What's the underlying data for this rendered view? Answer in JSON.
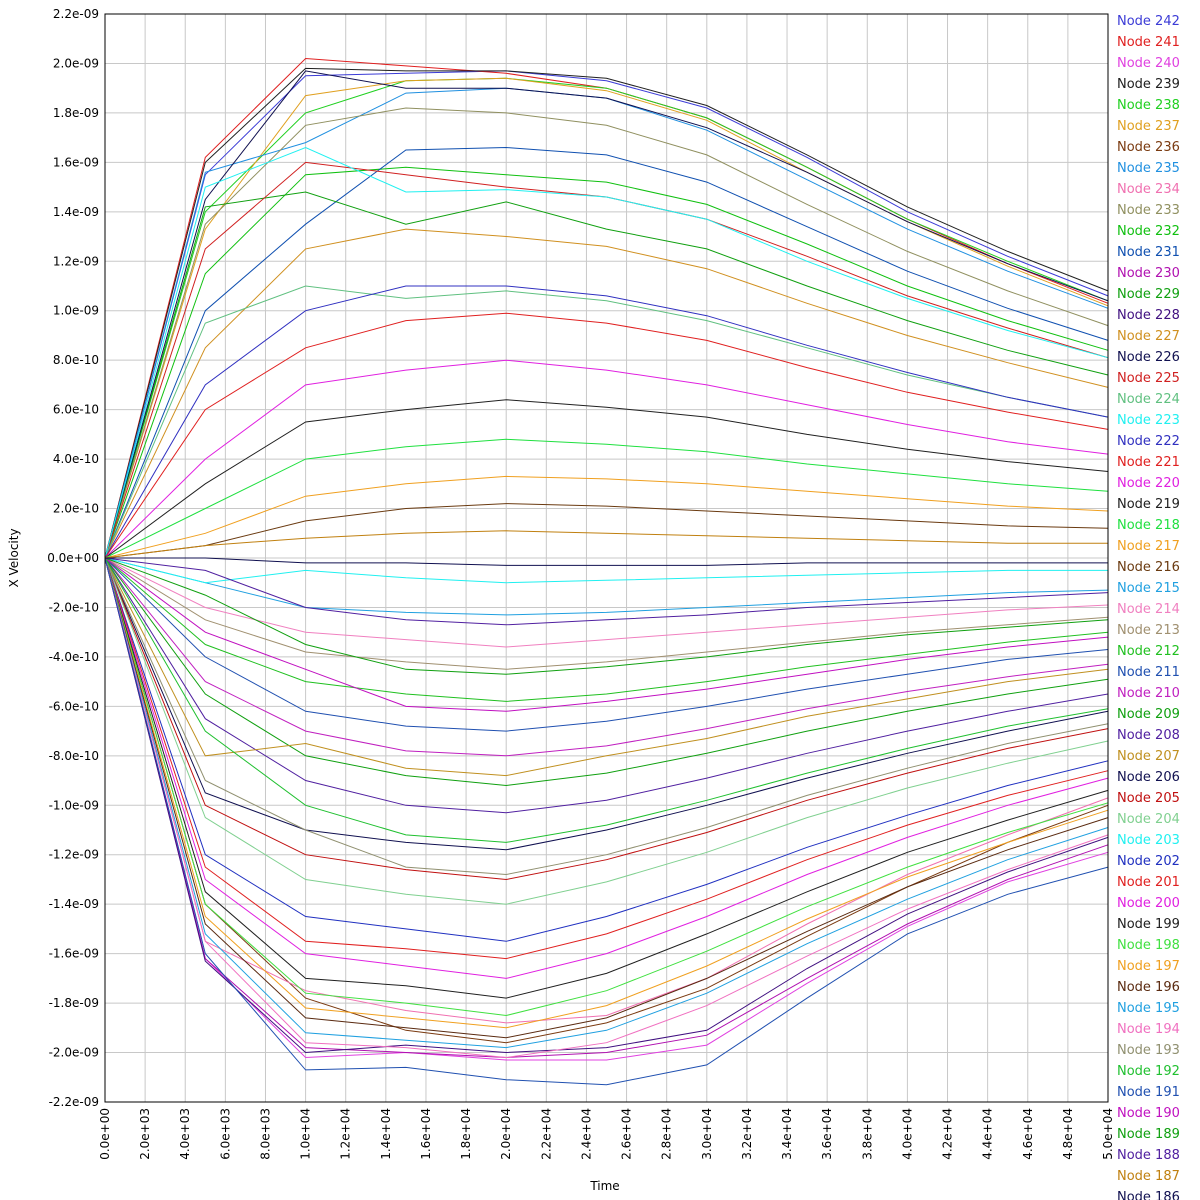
{
  "chart_data": {
    "type": "line",
    "xlabel": "Time",
    "ylabel": "X Velocity",
    "xlim": [
      0,
      50000
    ],
    "ylim": [
      -2.2e-09,
      2.2e-09
    ],
    "grid": true,
    "legend_placement": "right",
    "x_ticks": [
      "0.0e+00",
      "2.0e+03",
      "4.0e+03",
      "6.0e+03",
      "8.0e+03",
      "1.0e+04",
      "1.2e+04",
      "1.4e+04",
      "1.6e+04",
      "1.8e+04",
      "2.0e+04",
      "2.2e+04",
      "2.4e+04",
      "2.6e+04",
      "2.8e+04",
      "3.0e+04",
      "3.2e+04",
      "3.4e+04",
      "3.6e+04",
      "3.8e+04",
      "4.0e+04",
      "4.2e+04",
      "4.4e+04",
      "4.6e+04",
      "4.8e+04",
      "5.0e+04"
    ],
    "y_ticks": [
      "2.2e-09",
      "2.0e-09",
      "1.8e-09",
      "1.6e-09",
      "1.4e-09",
      "1.2e-09",
      "1.0e-09",
      "8.0e-10",
      "6.0e-10",
      "4.0e-10",
      "2.0e-10",
      "0.0e+00",
      "-2.0e-10",
      "-4.0e-10",
      "-6.0e-10",
      "-8.0e-10",
      "-1.0e-09",
      "-1.2e-09",
      "-1.4e-09",
      "-1.6e-09",
      "-1.8e-09",
      "-2.0e-09",
      "-2.2e-09"
    ],
    "x": [
      0,
      5000,
      10000,
      15000,
      20000,
      25000,
      30000,
      35000,
      40000,
      45000,
      50000
    ],
    "series": [
      {
        "name": "Node 242",
        "color": "#3b3bd6",
        "values": [
          0,
          1.55e-09,
          1.95e-09,
          1.96e-09,
          1.97e-09,
          1.93e-09,
          1.82e-09,
          1.62e-09,
          1.4e-09,
          1.22e-09,
          1.06e-09
        ]
      },
      {
        "name": "Node 241",
        "color": "#e02020",
        "values": [
          0,
          1.62e-09,
          2.02e-09,
          1.99e-09,
          1.96e-09,
          1.9e-09,
          1.78e-09,
          1.58e-09,
          1.37e-09,
          1.19e-09,
          1.03e-09
        ]
      },
      {
        "name": "Node 240",
        "color": "#e040e0",
        "values": [
          0,
          -1.62e-09,
          -2.02e-09,
          -2e-09,
          -2.03e-09,
          -2.03e-09,
          -1.97e-09,
          -1.72e-09,
          -1.49e-09,
          -1.31e-09,
          -1.19e-09
        ]
      },
      {
        "name": "Node 239",
        "color": "#202020",
        "values": [
          0,
          1.6e-09,
          1.98e-09,
          1.97e-09,
          1.97e-09,
          1.94e-09,
          1.83e-09,
          1.63e-09,
          1.42e-09,
          1.24e-09,
          1.08e-09
        ]
      },
      {
        "name": "Node 238",
        "color": "#20d020",
        "values": [
          0,
          1.4e-09,
          1.8e-09,
          1.93e-09,
          1.94e-09,
          1.9e-09,
          1.78e-09,
          1.58e-09,
          1.37e-09,
          1.2e-09,
          1.04e-09
        ]
      },
      {
        "name": "Node 237",
        "color": "#e0a020",
        "values": [
          0,
          1.33e-09,
          1.87e-09,
          1.93e-09,
          1.94e-09,
          1.89e-09,
          1.77e-09,
          1.56e-09,
          1.36e-09,
          1.18e-09,
          1.02e-09
        ]
      },
      {
        "name": "Node 236",
        "color": "#7a3a10",
        "values": [
          0,
          -1.4e-09,
          -1.78e-09,
          -1.91e-09,
          -1.96e-09,
          -1.88e-09,
          -1.74e-09,
          -1.53e-09,
          -1.33e-09,
          -1.15e-09,
          -1e-09
        ]
      },
      {
        "name": "Node 235",
        "color": "#2090e0",
        "values": [
          0,
          1.56e-09,
          1.68e-09,
          1.88e-09,
          1.9e-09,
          1.86e-09,
          1.73e-09,
          1.53e-09,
          1.33e-09,
          1.16e-09,
          1.01e-09
        ]
      },
      {
        "name": "Node 234",
        "color": "#f070b0",
        "values": [
          0,
          -1.55e-09,
          -1.75e-09,
          -1.83e-09,
          -1.88e-09,
          -1.85e-09,
          -1.7e-09,
          -1.48e-09,
          -1.28e-09,
          -1.12e-09,
          -9.7e-10
        ]
      },
      {
        "name": "Node 233",
        "color": "#909060",
        "values": [
          0,
          1.35e-09,
          1.75e-09,
          1.82e-09,
          1.8e-09,
          1.75e-09,
          1.63e-09,
          1.43e-09,
          1.24e-09,
          1.08e-09,
          9.4e-10
        ]
      },
      {
        "name": "Node 232",
        "color": "#10c010",
        "values": [
          0,
          1.15e-09,
          1.55e-09,
          1.58e-09,
          1.55e-09,
          1.52e-09,
          1.43e-09,
          1.27e-09,
          1.1e-09,
          9.6e-10,
          8.4e-10
        ]
      },
      {
        "name": "Node 231",
        "color": "#1050b0",
        "values": [
          0,
          1e-09,
          1.35e-09,
          1.65e-09,
          1.66e-09,
          1.63e-09,
          1.52e-09,
          1.34e-09,
          1.16e-09,
          1.01e-09,
          8.8e-10
        ]
      },
      {
        "name": "Node 230",
        "color": "#b010b0",
        "values": [
          0,
          -1.62e-09,
          -1.98e-09,
          -2e-09,
          -2.02e-09,
          -2e-09,
          -1.93e-09,
          -1.7e-09,
          -1.48e-09,
          -1.3e-09,
          -1.16e-09
        ]
      },
      {
        "name": "Node 229",
        "color": "#10a010",
        "values": [
          0,
          1.42e-09,
          1.48e-09,
          1.35e-09,
          1.44e-09,
          1.33e-09,
          1.25e-09,
          1.1e-09,
          9.6e-10,
          8.4e-10,
          7.4e-10
        ]
      },
      {
        "name": "Node 228",
        "color": "#401080",
        "values": [
          0,
          -1.63e-09,
          -2e-09,
          -1.97e-09,
          -2e-09,
          -1.98e-09,
          -1.91e-09,
          -1.66e-09,
          -1.44e-09,
          -1.27e-09,
          -1.13e-09
        ]
      },
      {
        "name": "Node 227",
        "color": "#d09020",
        "values": [
          0,
          8.5e-10,
          1.25e-09,
          1.33e-09,
          1.3e-09,
          1.26e-09,
          1.17e-09,
          1.03e-09,
          9e-10,
          7.9e-10,
          6.9e-10
        ]
      },
      {
        "name": "Node 226",
        "color": "#101050",
        "values": [
          0,
          1.45e-09,
          1.97e-09,
          1.9e-09,
          1.9e-09,
          1.86e-09,
          1.74e-09,
          1.56e-09,
          1.36e-09,
          1.19e-09,
          1.04e-09
        ]
      },
      {
        "name": "Node 225",
        "color": "#d02020",
        "values": [
          0,
          1.25e-09,
          1.6e-09,
          1.55e-09,
          1.5e-09,
          1.46e-09,
          1.37e-09,
          1.22e-09,
          1.06e-09,
          9.3e-10,
          8.1e-10
        ]
      },
      {
        "name": "Node 224",
        "color": "#60c080",
        "values": [
          0,
          9.5e-10,
          1.1e-09,
          1.05e-09,
          1.08e-09,
          1.04e-09,
          9.6e-10,
          8.5e-10,
          7.4e-10,
          6.5e-10,
          5.7e-10
        ]
      },
      {
        "name": "Node 223",
        "color": "#20f0f0",
        "values": [
          0,
          1.5e-09,
          1.66e-09,
          1.48e-09,
          1.49e-09,
          1.46e-09,
          1.37e-09,
          1.2e-09,
          1.05e-09,
          9.2e-10,
          8.1e-10
        ]
      },
      {
        "name": "Node 222",
        "color": "#3030c0",
        "values": [
          0,
          7e-10,
          1e-09,
          1.1e-09,
          1.1e-09,
          1.06e-09,
          9.8e-10,
          8.6e-10,
          7.5e-10,
          6.5e-10,
          5.7e-10
        ]
      },
      {
        "name": "Node 221",
        "color": "#e02020",
        "values": [
          0,
          6e-10,
          8.5e-10,
          9.6e-10,
          9.9e-10,
          9.5e-10,
          8.8e-10,
          7.7e-10,
          6.7e-10,
          5.9e-10,
          5.2e-10
        ]
      },
      {
        "name": "Node 220",
        "color": "#e020e0",
        "values": [
          0,
          4e-10,
          7e-10,
          7.6e-10,
          8e-10,
          7.6e-10,
          7e-10,
          6.2e-10,
          5.4e-10,
          4.7e-10,
          4.2e-10
        ]
      },
      {
        "name": "Node 219",
        "color": "#202020",
        "values": [
          0,
          3e-10,
          5.5e-10,
          6e-10,
          6.4e-10,
          6.1e-10,
          5.7e-10,
          5e-10,
          4.4e-10,
          3.9e-10,
          3.5e-10
        ]
      },
      {
        "name": "Node 218",
        "color": "#20e040",
        "values": [
          0,
          2e-10,
          4e-10,
          4.5e-10,
          4.8e-10,
          4.6e-10,
          4.3e-10,
          3.8e-10,
          3.4e-10,
          3e-10,
          2.7e-10
        ]
      },
      {
        "name": "Node 217",
        "color": "#f0a020",
        "values": [
          0,
          1e-10,
          2.5e-10,
          3e-10,
          3.3e-10,
          3.2e-10,
          3e-10,
          2.7e-10,
          2.4e-10,
          2.1e-10,
          1.9e-10
        ]
      },
      {
        "name": "Node 216",
        "color": "#6a3a10",
        "values": [
          0,
          5e-11,
          1.5e-10,
          2e-10,
          2.2e-10,
          2.1e-10,
          1.9e-10,
          1.7e-10,
          1.5e-10,
          1.3e-10,
          1.2e-10
        ]
      },
      {
        "name": "Node 215",
        "color": "#20a0e0",
        "values": [
          0,
          -1e-10,
          -2e-10,
          -2.2e-10,
          -2.3e-10,
          -2.2e-10,
          -2e-10,
          -1.8e-10,
          -1.6e-10,
          -1.4e-10,
          -1.3e-10
        ]
      },
      {
        "name": "Node 214",
        "color": "#f080c0",
        "values": [
          0,
          -2e-10,
          -3e-10,
          -3.3e-10,
          -3.6e-10,
          -3.3e-10,
          -3e-10,
          -2.7e-10,
          -2.4e-10,
          -2.1e-10,
          -1.9e-10
        ]
      },
      {
        "name": "Node 213",
        "color": "#a09070",
        "values": [
          0,
          -2.5e-10,
          -3.8e-10,
          -4.2e-10,
          -4.5e-10,
          -4.2e-10,
          -3.8e-10,
          -3.4e-10,
          -3e-10,
          -2.7e-10,
          -2.4e-10
        ]
      },
      {
        "name": "Node 212",
        "color": "#20c020",
        "values": [
          0,
          -3.5e-10,
          -5e-10,
          -5.5e-10,
          -5.8e-10,
          -5.5e-10,
          -5e-10,
          -4.4e-10,
          -3.9e-10,
          -3.4e-10,
          -3e-10
        ]
      },
      {
        "name": "Node 211",
        "color": "#2050b0",
        "values": [
          0,
          -4e-10,
          -6.2e-10,
          -6.8e-10,
          -7e-10,
          -6.6e-10,
          -6e-10,
          -5.3e-10,
          -4.7e-10,
          -4.1e-10,
          -3.7e-10
        ]
      },
      {
        "name": "Node 210",
        "color": "#c020c0",
        "values": [
          0,
          -5e-10,
          -7e-10,
          -7.8e-10,
          -8e-10,
          -7.6e-10,
          -6.9e-10,
          -6.1e-10,
          -5.4e-10,
          -4.8e-10,
          -4.3e-10
        ]
      },
      {
        "name": "Node 209",
        "color": "#10a010",
        "values": [
          0,
          -5.5e-10,
          -8e-10,
          -8.8e-10,
          -9.2e-10,
          -8.7e-10,
          -7.9e-10,
          -7e-10,
          -6.2e-10,
          -5.5e-10,
          -4.9e-10
        ]
      },
      {
        "name": "Node 208",
        "color": "#5020a0",
        "values": [
          0,
          -6.5e-10,
          -9e-10,
          -1e-09,
          -1.03e-09,
          -9.8e-10,
          -8.9e-10,
          -7.9e-10,
          -7e-10,
          -6.2e-10,
          -5.5e-10
        ]
      },
      {
        "name": "Node 207",
        "color": "#c09020",
        "values": [
          0,
          -8e-10,
          -7.5e-10,
          -8.5e-10,
          -8.8e-10,
          -8e-10,
          -7.3e-10,
          -6.4e-10,
          -5.7e-10,
          -5e-10,
          -4.5e-10
        ]
      },
      {
        "name": "Node 206",
        "color": "#101050",
        "values": [
          0,
          -9.5e-10,
          -1.1e-09,
          -1.15e-09,
          -1.18e-09,
          -1.1e-09,
          -1e-09,
          -8.9e-10,
          -7.9e-10,
          -7e-10,
          -6.2e-10
        ]
      },
      {
        "name": "Node 205",
        "color": "#c01010",
        "values": [
          0,
          -1e-09,
          -1.2e-09,
          -1.26e-09,
          -1.3e-09,
          -1.22e-09,
          -1.11e-09,
          -9.8e-10,
          -8.7e-10,
          -7.7e-10,
          -6.9e-10
        ]
      },
      {
        "name": "Node 204",
        "color": "#80d090",
        "values": [
          0,
          -1.05e-09,
          -1.3e-09,
          -1.36e-09,
          -1.4e-09,
          -1.31e-09,
          -1.19e-09,
          -1.05e-09,
          -9.3e-10,
          -8.3e-10,
          -7.4e-10
        ]
      },
      {
        "name": "Node 203",
        "color": "#20f0f0",
        "values": [
          0,
          -1e-10,
          -5e-11,
          -8e-11,
          -1e-10,
          -9e-11,
          -8e-11,
          -7e-11,
          -6e-11,
          -5e-11,
          -5e-11
        ]
      },
      {
        "name": "Node 202",
        "color": "#2030c0",
        "values": [
          0,
          -1.2e-09,
          -1.45e-09,
          -1.5e-09,
          -1.55e-09,
          -1.45e-09,
          -1.32e-09,
          -1.17e-09,
          -1.04e-09,
          -9.2e-10,
          -8.2e-10
        ]
      },
      {
        "name": "Node 201",
        "color": "#e02020",
        "values": [
          0,
          -1.25e-09,
          -1.55e-09,
          -1.58e-09,
          -1.62e-09,
          -1.52e-09,
          -1.38e-09,
          -1.22e-09,
          -1.08e-09,
          -9.6e-10,
          -8.6e-10
        ]
      },
      {
        "name": "Node 200",
        "color": "#e020e0",
        "values": [
          0,
          -1.3e-09,
          -1.6e-09,
          -1.65e-09,
          -1.7e-09,
          -1.6e-09,
          -1.45e-09,
          -1.28e-09,
          -1.13e-09,
          -1e-09,
          -8.9e-10
        ]
      },
      {
        "name": "Node 199",
        "color": "#202020",
        "values": [
          0,
          -1.35e-09,
          -1.7e-09,
          -1.73e-09,
          -1.78e-09,
          -1.68e-09,
          -1.52e-09,
          -1.35e-09,
          -1.19e-09,
          -1.06e-09,
          -9.4e-10
        ]
      },
      {
        "name": "Node 198",
        "color": "#40e040",
        "values": [
          0,
          -1.4e-09,
          -1.76e-09,
          -1.8e-09,
          -1.85e-09,
          -1.75e-09,
          -1.59e-09,
          -1.41e-09,
          -1.25e-09,
          -1.11e-09,
          -9.9e-10
        ]
      },
      {
        "name": "Node 197",
        "color": "#f0a020",
        "values": [
          0,
          -1.45e-09,
          -1.82e-09,
          -1.86e-09,
          -1.9e-09,
          -1.81e-09,
          -1.65e-09,
          -1.46e-09,
          -1.29e-09,
          -1.15e-09,
          -1.02e-09
        ]
      },
      {
        "name": "Node 196",
        "color": "#5a2a10",
        "values": [
          0,
          -1.48e-09,
          -1.86e-09,
          -1.9e-09,
          -1.94e-09,
          -1.86e-09,
          -1.7e-09,
          -1.51e-09,
          -1.33e-09,
          -1.18e-09,
          -1.05e-09
        ]
      },
      {
        "name": "Node 195",
        "color": "#20a0e0",
        "values": [
          0,
          -1.52e-09,
          -1.92e-09,
          -1.95e-09,
          -1.98e-09,
          -1.91e-09,
          -1.76e-09,
          -1.56e-09,
          -1.38e-09,
          -1.22e-09,
          -1.09e-09
        ]
      },
      {
        "name": "Node 194",
        "color": "#f070c0",
        "values": [
          0,
          -1.55e-09,
          -1.96e-09,
          -1.98e-09,
          -2.02e-09,
          -1.96e-09,
          -1.81e-09,
          -1.61e-09,
          -1.42e-09,
          -1.26e-09,
          -1.12e-09
        ]
      },
      {
        "name": "Node 193",
        "color": "#909070",
        "values": [
          0,
          -9e-10,
          -1.1e-09,
          -1.25e-09,
          -1.28e-09,
          -1.2e-09,
          -1.09e-09,
          -9.6e-10,
          -8.5e-10,
          -7.5e-10,
          -6.7e-10
        ]
      },
      {
        "name": "Node 192",
        "color": "#20c030",
        "values": [
          0,
          -7e-10,
          -1e-09,
          -1.12e-09,
          -1.15e-09,
          -1.08e-09,
          -9.8e-10,
          -8.7e-10,
          -7.7e-10,
          -6.8e-10,
          -6.1e-10
        ]
      },
      {
        "name": "Node 191",
        "color": "#2050b0",
        "values": [
          0,
          -1.6e-09,
          -2.07e-09,
          -2.06e-09,
          -2.11e-09,
          -2.13e-09,
          -2.05e-09,
          -1.78e-09,
          -1.52e-09,
          -1.36e-09,
          -1.25e-09
        ]
      },
      {
        "name": "Node 190",
        "color": "#c010c0",
        "values": [
          0,
          -3e-10,
          -4.5e-10,
          -6e-10,
          -6.2e-10,
          -5.8e-10,
          -5.3e-10,
          -4.7e-10,
          -4.1e-10,
          -3.6e-10,
          -3.2e-10
        ]
      },
      {
        "name": "Node 189",
        "color": "#10a010",
        "values": [
          0,
          -1.5e-10,
          -3.5e-10,
          -4.5e-10,
          -4.7e-10,
          -4.4e-10,
          -4e-10,
          -3.5e-10,
          -3.1e-10,
          -2.8e-10,
          -2.5e-10
        ]
      },
      {
        "name": "Node 188",
        "color": "#5020a0",
        "values": [
          0,
          -5e-11,
          -2e-10,
          -2.5e-10,
          -2.7e-10,
          -2.5e-10,
          -2.3e-10,
          -2e-10,
          -1.8e-10,
          -1.6e-10,
          -1.4e-10
        ]
      },
      {
        "name": "Node 187",
        "color": "#c08010",
        "values": [
          0,
          5e-11,
          8e-11,
          1e-10,
          1.1e-10,
          1e-10,
          9e-11,
          8e-11,
          7e-11,
          6e-11,
          6e-11
        ]
      },
      {
        "name": "Node 186",
        "color": "#101050",
        "values": [
          0,
          0.0,
          -2e-11,
          -2e-11,
          -3e-11,
          -3e-11,
          -3e-11,
          -2e-11,
          -2e-11,
          -2e-11,
          -2e-11
        ]
      }
    ]
  }
}
